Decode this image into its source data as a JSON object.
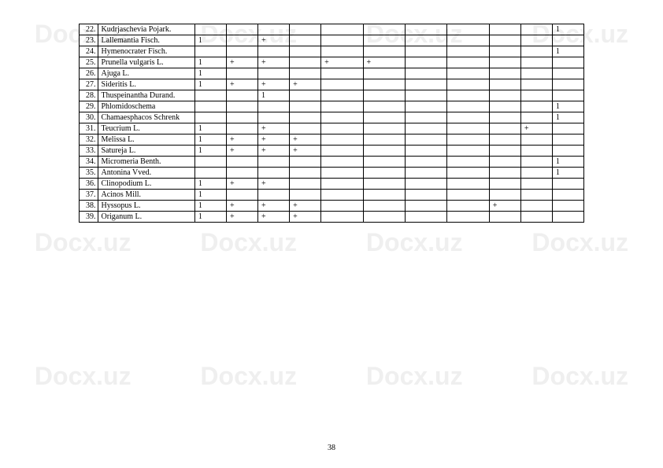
{
  "watermark": "Docx.uz",
  "page_number": "38",
  "watermark_rows_y": [
    25,
    290,
    460
  ],
  "table": {
    "rows": [
      {
        "num": "22.",
        "name": "Kudrjaschevia Pojark.",
        "cols": [
          "",
          "",
          "",
          "",
          "",
          "",
          "",
          "",
          "",
          "",
          "1"
        ]
      },
      {
        "num": "23.",
        "name": "Lallemantia Fisch.",
        "cols": [
          "1",
          "",
          "+",
          "",
          "",
          "",
          "",
          "",
          "",
          "",
          ""
        ]
      },
      {
        "num": "24.",
        "name": "Hymenocrater Fisch.",
        "cols": [
          "",
          "",
          "",
          "",
          "",
          "",
          "",
          "",
          "",
          "",
          "1"
        ]
      },
      {
        "num": "25.",
        "name": "Prunella vulgaris L.",
        "cols": [
          "1",
          "+",
          "+",
          "",
          "+",
          "+",
          "",
          "",
          "",
          "",
          ""
        ]
      },
      {
        "num": "26.",
        "name": "Ajuga L.",
        "cols": [
          "1",
          "",
          "",
          "",
          "",
          "",
          "",
          "",
          "",
          "",
          ""
        ]
      },
      {
        "num": "27.",
        "name": "Sideritis L.",
        "cols": [
          "1",
          "+",
          "+",
          "+",
          "",
          "",
          "",
          "",
          "",
          "",
          ""
        ]
      },
      {
        "num": "28.",
        "name": "Thuspeinantha Durand.",
        "cols": [
          "",
          "",
          "1",
          "",
          "",
          "",
          "",
          "",
          "",
          "",
          ""
        ]
      },
      {
        "num": "29.",
        "name": "Phlomidoschema",
        "cols": [
          "",
          "",
          "",
          "",
          "",
          "",
          "",
          "",
          "",
          "",
          "1"
        ]
      },
      {
        "num": "30.",
        "name": "Chamaesphacos Schrenk",
        "cols": [
          "",
          "",
          "",
          "",
          "",
          "",
          "",
          "",
          "",
          "",
          "1"
        ]
      },
      {
        "num": "31.",
        "name": "Teucrium L.",
        "cols": [
          "1",
          "",
          "+",
          "",
          "",
          "",
          "",
          "",
          "",
          "+",
          ""
        ]
      },
      {
        "num": "32.",
        "name": "Melissa L.",
        "cols": [
          "1",
          "+",
          "+",
          "+",
          "",
          "",
          "",
          "",
          "",
          "",
          ""
        ]
      },
      {
        "num": "33.",
        "name": "Satureja L.",
        "cols": [
          "1",
          "+",
          "+",
          "+",
          "",
          "",
          "",
          "",
          "",
          "",
          ""
        ]
      },
      {
        "num": "34.",
        "name": "Micromeria Benth.",
        "cols": [
          "",
          "",
          "",
          "",
          "",
          "",
          "",
          "",
          "",
          "",
          "1"
        ]
      },
      {
        "num": "35.",
        "name": "Antonina Vved.",
        "cols": [
          "",
          "",
          "",
          "",
          "",
          "",
          "",
          "",
          "",
          "",
          "1"
        ]
      },
      {
        "num": "36.",
        "name": "Clinopodium L.",
        "cols": [
          "1",
          "+",
          "+",
          "",
          "",
          "",
          "",
          "",
          "",
          "",
          ""
        ]
      },
      {
        "num": "37.",
        "name": "Acinos Mill.",
        "cols": [
          "1",
          "",
          "",
          "",
          "",
          "",
          "",
          "",
          "",
          "",
          ""
        ]
      },
      {
        "num": "38.",
        "name": "Hyssopus L.",
        "cols": [
          "1",
          "+",
          "+",
          "+",
          "",
          "",
          "",
          "",
          "+",
          "",
          ""
        ]
      },
      {
        "num": "39.",
        "name": "Origanum L.",
        "cols": [
          "1",
          "+",
          "+",
          "+",
          "",
          "",
          "",
          "",
          "",
          "",
          ""
        ]
      }
    ]
  }
}
